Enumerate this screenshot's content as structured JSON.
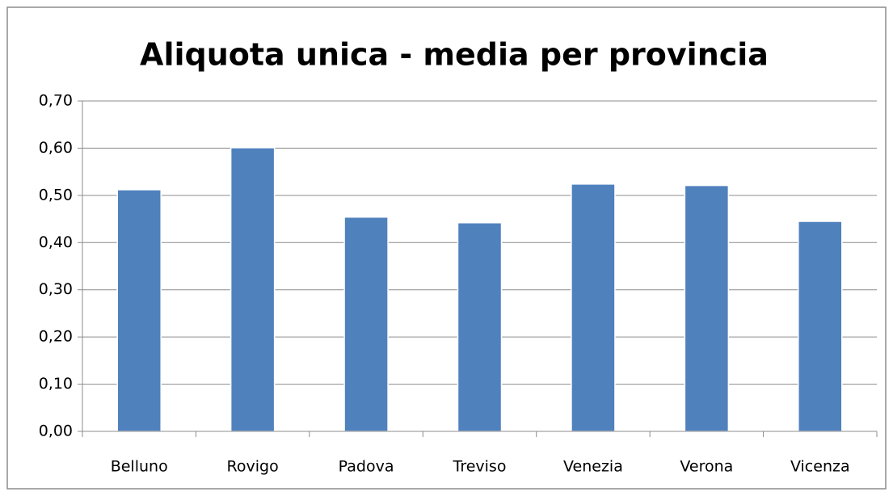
{
  "chart_data": {
    "type": "bar",
    "title": "Aliquota unica - media per provincia",
    "categories": [
      "Belluno",
      "Rovigo",
      "Padova",
      "Treviso",
      "Venezia",
      "Verona",
      "Vicenza"
    ],
    "values": [
      0.512,
      0.601,
      0.454,
      0.442,
      0.524,
      0.521,
      0.445
    ],
    "color": "#4f81bd",
    "ylim": [
      0,
      0.7
    ],
    "yticks": [
      {
        "value": 0,
        "label": "0,00"
      },
      {
        "value": 0.1,
        "label": "0,10"
      },
      {
        "value": 0.2,
        "label": "0,20"
      },
      {
        "value": 0.3,
        "label": "0,30"
      },
      {
        "value": 0.4,
        "label": "0,40"
      },
      {
        "value": 0.5,
        "label": "0,50"
      },
      {
        "value": 0.6,
        "label": "0,60"
      },
      {
        "value": 0.7,
        "label": "0,70"
      }
    ],
    "grid": true
  }
}
